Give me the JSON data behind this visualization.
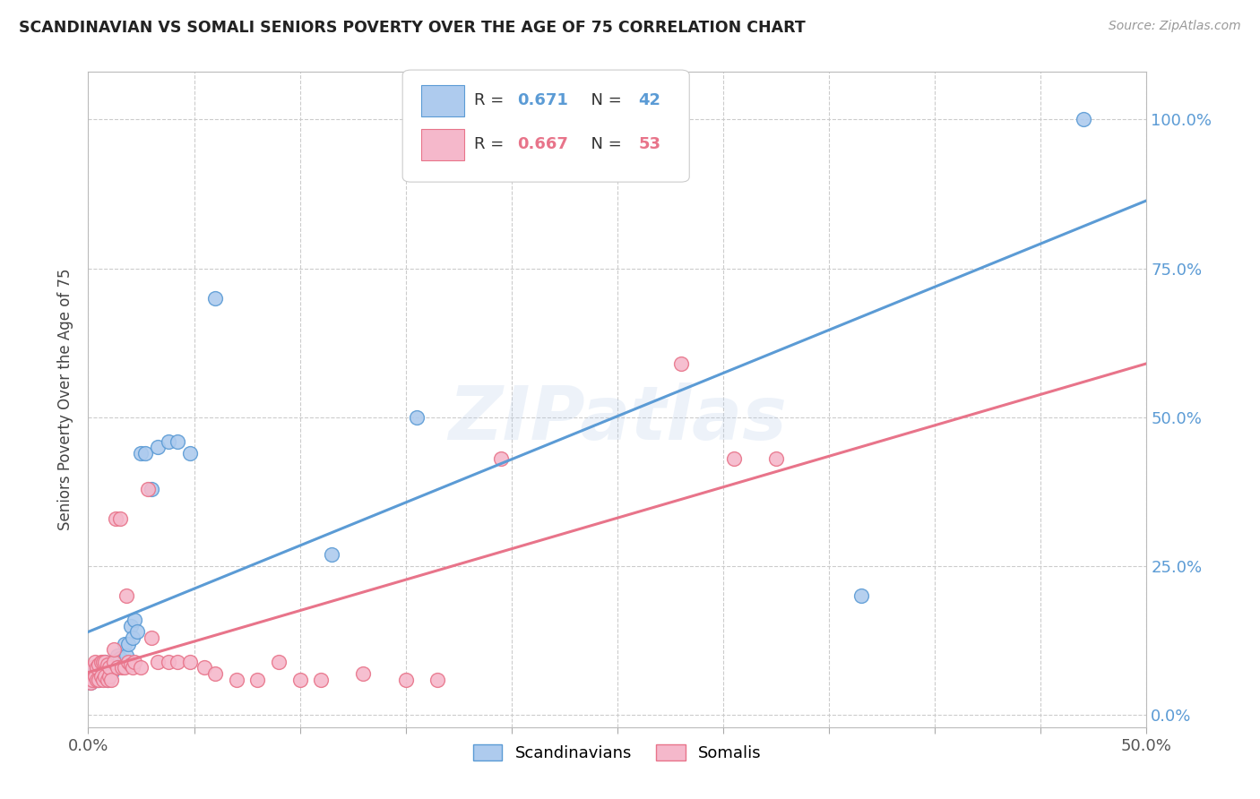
{
  "title": "SCANDINAVIAN VS SOMALI SENIORS POVERTY OVER THE AGE OF 75 CORRELATION CHART",
  "source": "Source: ZipAtlas.com",
  "ylabel": "Seniors Poverty Over the Age of 75",
  "xlim": [
    0.0,
    0.5
  ],
  "ylim": [
    -0.02,
    1.08
  ],
  "x_ticks": [
    0.0,
    0.05,
    0.1,
    0.15,
    0.2,
    0.25,
    0.3,
    0.35,
    0.4,
    0.45,
    0.5
  ],
  "y_ticks": [
    0.0,
    0.25,
    0.5,
    0.75,
    1.0
  ],
  "y_tick_labels_right": [
    "0.0%",
    "25.0%",
    "50.0%",
    "75.0%",
    "100.0%"
  ],
  "background_color": "#ffffff",
  "grid_color": "#cccccc",
  "watermark": "ZIPatlas",
  "scandinavian_color": "#aecbee",
  "somali_color": "#f5b8cb",
  "scandinavian_line_color": "#5b9bd5",
  "somali_line_color": "#e8748a",
  "R_scandinavian": "0.671",
  "N_scandinavian": "42",
  "R_somali": "0.667",
  "N_somali": "53",
  "sc_x": [
    0.001,
    0.002,
    0.003,
    0.003,
    0.004,
    0.004,
    0.005,
    0.005,
    0.006,
    0.006,
    0.007,
    0.008,
    0.008,
    0.009,
    0.009,
    0.01,
    0.01,
    0.011,
    0.012,
    0.013,
    0.014,
    0.015,
    0.016,
    0.017,
    0.018,
    0.019,
    0.02,
    0.021,
    0.022,
    0.023,
    0.025,
    0.027,
    0.03,
    0.033,
    0.038,
    0.042,
    0.048,
    0.06,
    0.115,
    0.155,
    0.365,
    0.47
  ],
  "sc_y": [
    0.055,
    0.065,
    0.06,
    0.075,
    0.06,
    0.08,
    0.06,
    0.08,
    0.065,
    0.085,
    0.07,
    0.065,
    0.09,
    0.06,
    0.08,
    0.065,
    0.085,
    0.07,
    0.09,
    0.08,
    0.1,
    0.095,
    0.085,
    0.12,
    0.1,
    0.12,
    0.15,
    0.13,
    0.16,
    0.14,
    0.44,
    0.44,
    0.38,
    0.45,
    0.46,
    0.46,
    0.44,
    0.7,
    0.27,
    0.5,
    0.2,
    1.0
  ],
  "so_x": [
    0.001,
    0.002,
    0.002,
    0.003,
    0.003,
    0.004,
    0.004,
    0.005,
    0.005,
    0.006,
    0.006,
    0.007,
    0.007,
    0.008,
    0.008,
    0.009,
    0.009,
    0.01,
    0.01,
    0.011,
    0.012,
    0.012,
    0.013,
    0.014,
    0.015,
    0.016,
    0.017,
    0.018,
    0.019,
    0.02,
    0.021,
    0.022,
    0.025,
    0.028,
    0.03,
    0.033,
    0.038,
    0.042,
    0.048,
    0.055,
    0.06,
    0.07,
    0.08,
    0.09,
    0.1,
    0.11,
    0.13,
    0.15,
    0.165,
    0.195,
    0.28,
    0.305,
    0.325
  ],
  "so_y": [
    0.055,
    0.06,
    0.08,
    0.065,
    0.09,
    0.06,
    0.08,
    0.06,
    0.085,
    0.065,
    0.09,
    0.06,
    0.09,
    0.065,
    0.09,
    0.06,
    0.085,
    0.065,
    0.08,
    0.06,
    0.09,
    0.11,
    0.33,
    0.08,
    0.33,
    0.08,
    0.08,
    0.2,
    0.09,
    0.085,
    0.08,
    0.09,
    0.08,
    0.38,
    0.13,
    0.09,
    0.09,
    0.09,
    0.09,
    0.08,
    0.07,
    0.06,
    0.06,
    0.09,
    0.06,
    0.06,
    0.07,
    0.06,
    0.06,
    0.43,
    0.59,
    0.43,
    0.43
  ]
}
